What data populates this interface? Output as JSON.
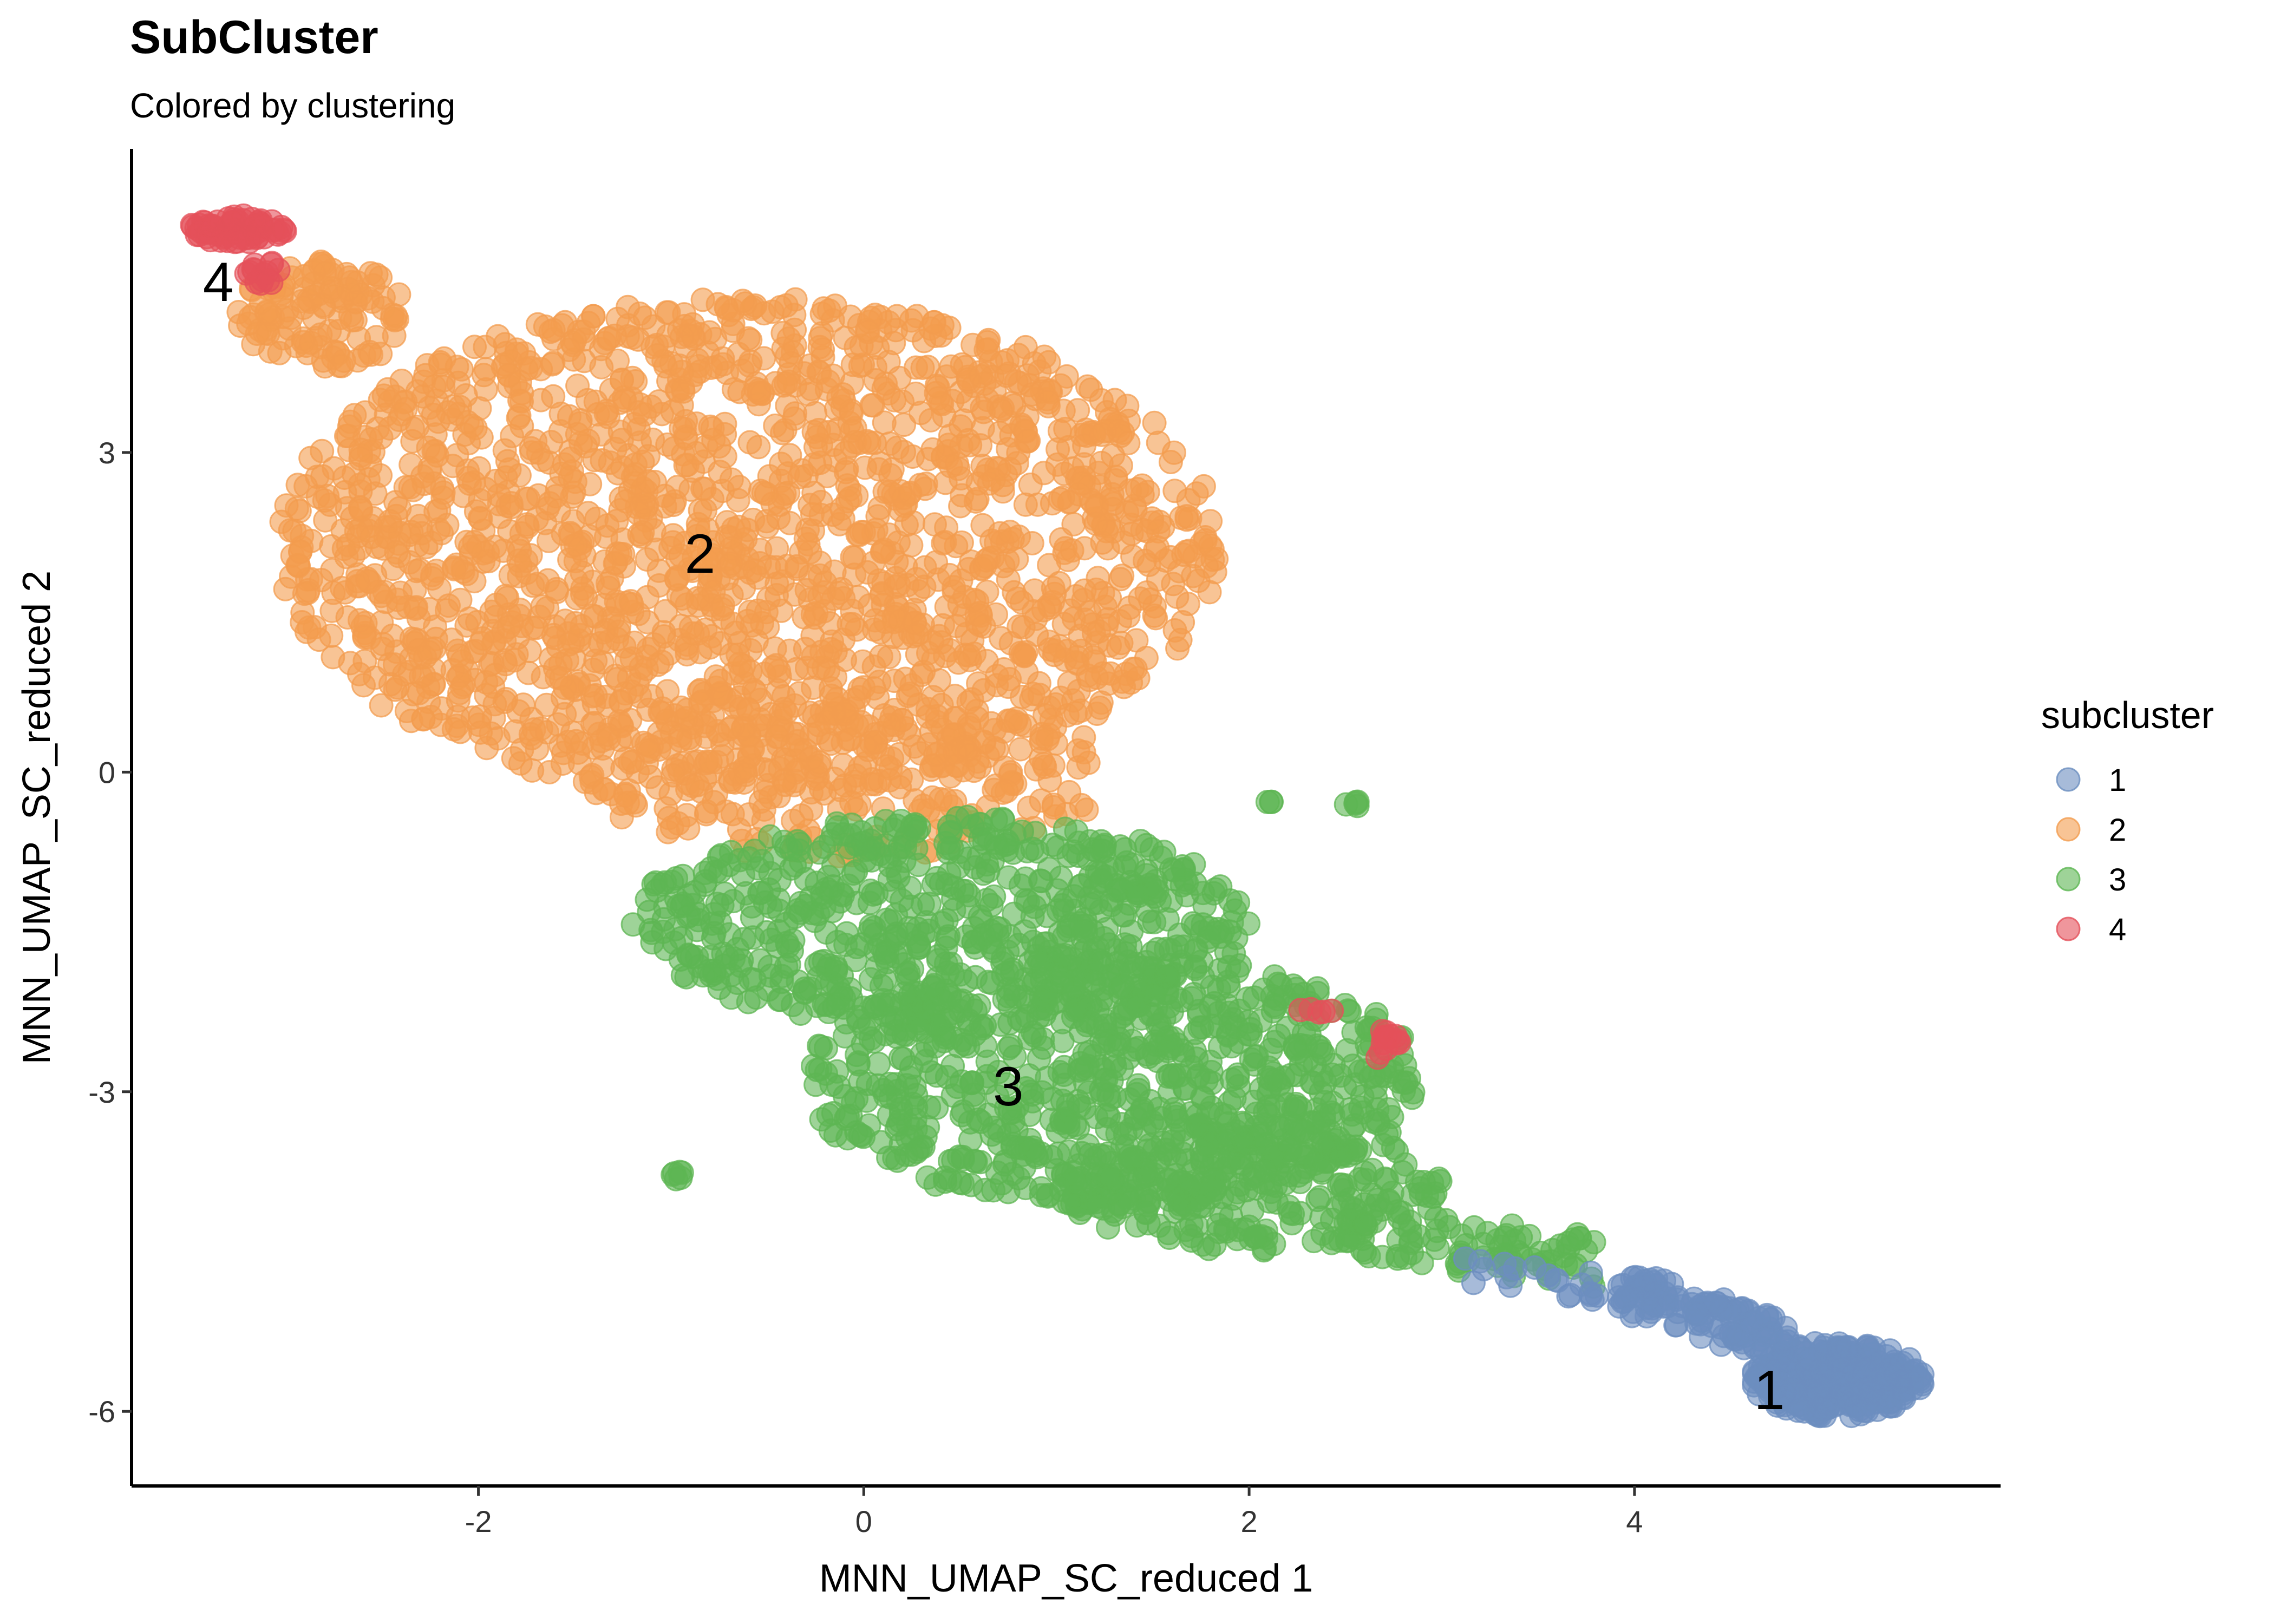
{
  "chart_data": {
    "type": "scatter",
    "title": "SubCluster",
    "subtitle": "Colored by clustering",
    "xlabel": "MNN_UMAP_SC_reduced 1",
    "ylabel": "MNN_UMAP_SC_reduced 2",
    "xlim": [
      -3.8,
      5.9
    ],
    "ylim": [
      -6.7,
      5.85
    ],
    "xticks": [
      -2,
      0,
      2,
      4
    ],
    "xtick_labels": [
      "-2",
      "0",
      "2",
      "4"
    ],
    "yticks": [
      -6,
      -3,
      0,
      3
    ],
    "yticks_labels": [
      "-6",
      "-3",
      "0",
      "3"
    ],
    "grid": false,
    "legend": {
      "title": "subcluster",
      "position": "right"
    },
    "series": [
      {
        "name": "1",
        "color": "#6C8EBF"
      },
      {
        "name": "2",
        "color": "#F39C4F"
      },
      {
        "name": "3",
        "color": "#5DB653"
      },
      {
        "name": "4",
        "color": "#E4505A"
      }
    ],
    "cluster_labels": [
      {
        "text": "1",
        "x": 4.7,
        "y": -5.8
      },
      {
        "text": "2",
        "x": -0.85,
        "y": 2.05
      },
      {
        "text": "3",
        "x": 0.75,
        "y": -2.95
      },
      {
        "text": "4",
        "x": -3.35,
        "y": 4.6
      }
    ],
    "regions": [
      {
        "series": "2",
        "shape": "ellipse",
        "cx": -0.6,
        "cy": 2.1,
        "rx": 2.45,
        "ry": 2.35,
        "n": 1900
      },
      {
        "series": "2",
        "shape": "ellipse",
        "cx": -0.1,
        "cy": 0.0,
        "rx": 1.4,
        "ry": 0.8,
        "n": 250
      },
      {
        "series": "2",
        "shape": "ellipse",
        "cx": -2.8,
        "cy": 4.3,
        "rx": 0.45,
        "ry": 0.5,
        "n": 120
      },
      {
        "series": "3",
        "shape": "ellipse",
        "cx": 0.4,
        "cy": -1.4,
        "rx": 1.6,
        "ry": 1.0,
        "n": 650
      },
      {
        "series": "3",
        "shape": "ellipse",
        "cx": 1.3,
        "cy": -2.9,
        "rx": 1.6,
        "ry": 1.2,
        "n": 800
      },
      {
        "series": "3",
        "shape": "ellipse",
        "cx": 2.0,
        "cy": -3.9,
        "rx": 1.0,
        "ry": 0.6,
        "n": 250
      },
      {
        "series": "3",
        "shape": "band",
        "x0": 2.5,
        "y0": -4.3,
        "x1": 3.8,
        "y1": -4.6,
        "width": 0.25,
        "n": 90
      },
      {
        "series": "3",
        "shape": "ellipse",
        "cx": -0.95,
        "cy": -3.8,
        "rx": 0.06,
        "ry": 0.06,
        "n": 6
      },
      {
        "series": "3",
        "shape": "ellipse",
        "cx": 2.55,
        "cy": -0.3,
        "rx": 0.05,
        "ry": 0.03,
        "n": 5
      },
      {
        "series": "3",
        "shape": "ellipse",
        "cx": 2.1,
        "cy": -0.3,
        "rx": 0.05,
        "ry": 0.03,
        "n": 3
      },
      {
        "series": "1",
        "shape": "ellipse",
        "cx": 5.05,
        "cy": -5.7,
        "rx": 0.45,
        "ry": 0.35,
        "n": 280
      },
      {
        "series": "1",
        "shape": "band",
        "x0": 3.9,
        "y0": -4.85,
        "x1": 4.8,
        "y1": -5.35,
        "width": 0.22,
        "n": 120
      },
      {
        "series": "1",
        "shape": "band",
        "x0": 3.1,
        "y0": -4.7,
        "x1": 3.9,
        "y1": -4.85,
        "width": 0.15,
        "n": 20
      },
      {
        "series": "4",
        "shape": "ellipse",
        "cx": -3.25,
        "cy": 5.1,
        "rx": 0.25,
        "ry": 0.13,
        "n": 70
      },
      {
        "series": "4",
        "shape": "ellipse",
        "cx": -3.1,
        "cy": 4.7,
        "rx": 0.12,
        "ry": 0.12,
        "n": 15
      },
      {
        "series": "4",
        "shape": "ellipse",
        "cx": 2.7,
        "cy": -2.55,
        "rx": 0.08,
        "ry": 0.15,
        "n": 14
      },
      {
        "series": "4",
        "shape": "ellipse",
        "cx": 2.35,
        "cy": -2.25,
        "rx": 0.1,
        "ry": 0.05,
        "n": 5
      }
    ]
  }
}
